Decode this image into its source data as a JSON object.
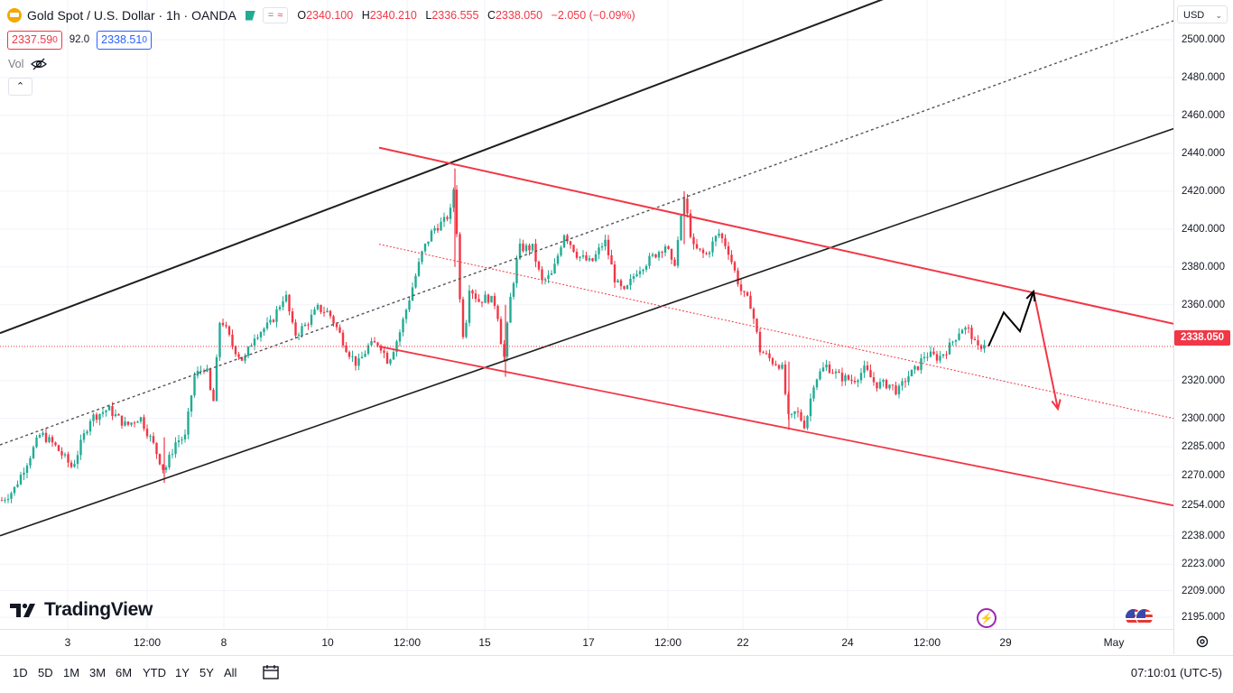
{
  "header": {
    "symbol_title": "Gold Spot / U.S. Dollar · 1h · OANDA",
    "open_label": "O",
    "open_value": "2340.100",
    "high_label": "H",
    "high_value": "2340.210",
    "low_label": "L",
    "low_value": "2336.555",
    "close_label": "C",
    "close_value": "2338.050",
    "change": "−2.050 (−0.09%)",
    "bid_main": "2337.59",
    "bid_sup": "0",
    "spread": "92.0",
    "ask_main": "2338.51",
    "ask_sup": "0",
    "vol_label": "Vol",
    "collapse_glyph": "⌃"
  },
  "currency": "USD",
  "last_price_label": "2338.050",
  "brand": "TradingView",
  "bottom_bar": {
    "ranges": [
      "1D",
      "5D",
      "1M",
      "3M",
      "6M",
      "YTD",
      "1Y",
      "5Y",
      "All"
    ],
    "clock": "07:10:01 (UTC-5)"
  },
  "colors": {
    "up": "#22ab94",
    "down": "#f23645",
    "channel_black": "#1e1e1e",
    "channel_red": "#f23645",
    "last_price": "#f23645",
    "event": "#9c27b0"
  },
  "icons": [
    "gold-coin-icon",
    "market-open-icon",
    "eye-hidden-icon",
    "chevron-up-icon",
    "calendar-range-icon",
    "gear-icon",
    "dividend-event-icon",
    "us-flag-icon"
  ],
  "chart_data": {
    "type": "candlestick",
    "title": "Gold Spot / U.S. Dollar · 1h · OANDA",
    "ylim": [
      2185,
      2515
    ],
    "y_ticks": [
      {
        "label": "2500.000",
        "v": 2500
      },
      {
        "label": "2480.000",
        "v": 2480
      },
      {
        "label": "2460.000",
        "v": 2460
      },
      {
        "label": "2440.000",
        "v": 2440
      },
      {
        "label": "2420.000",
        "v": 2420
      },
      {
        "label": "2400.000",
        "v": 2400
      },
      {
        "label": "2380.000",
        "v": 2380
      },
      {
        "label": "2360.000",
        "v": 2360
      },
      {
        "label": "2320.000",
        "v": 2320
      },
      {
        "label": "2300.000",
        "v": 2300
      },
      {
        "label": "2285.000",
        "v": 2285
      },
      {
        "label": "2270.000",
        "v": 2270
      },
      {
        "label": "2254.000",
        "v": 2254
      },
      {
        "label": "2238.000",
        "v": 2238
      },
      {
        "label": "2223.000",
        "v": 2223
      },
      {
        "label": "2209.000",
        "v": 2209
      },
      {
        "label": "2195.000",
        "v": 2195
      }
    ],
    "x_ticks": [
      "3",
      "12:00",
      "8",
      "10",
      "12:00",
      "15",
      "17",
      "12:00",
      "22",
      "24",
      "12:00",
      "29",
      "May"
    ],
    "last_price": 2338.05,
    "price_path": [
      [
        0,
        2256
      ],
      [
        15,
        2262
      ],
      [
        35,
        2282
      ],
      [
        45,
        2292
      ],
      [
        60,
        2286
      ],
      [
        80,
        2274
      ],
      [
        100,
        2300
      ],
      [
        120,
        2305
      ],
      [
        140,
        2296
      ],
      [
        155,
        2301
      ],
      [
        170,
        2286
      ],
      [
        182,
        2272
      ],
      [
        195,
        2288
      ],
      [
        205,
        2290
      ],
      [
        215,
        2322
      ],
      [
        228,
        2328
      ],
      [
        236,
        2306
      ],
      [
        244,
        2354
      ],
      [
        258,
        2338
      ],
      [
        270,
        2330
      ],
      [
        282,
        2344
      ],
      [
        300,
        2350
      ],
      [
        316,
        2366
      ],
      [
        326,
        2344
      ],
      [
        338,
        2349
      ],
      [
        352,
        2358
      ],
      [
        364,
        2356
      ],
      [
        375,
        2346
      ],
      [
        385,
        2336
      ],
      [
        396,
        2328
      ],
      [
        408,
        2338
      ],
      [
        420,
        2340
      ],
      [
        430,
        2330
      ],
      [
        442,
        2344
      ],
      [
        455,
        2366
      ],
      [
        468,
        2388
      ],
      [
        480,
        2400
      ],
      [
        492,
        2404
      ],
      [
        500,
        2410
      ],
      [
        504,
        2428
      ],
      [
        508,
        2370
      ],
      [
        514,
        2340
      ],
      [
        520,
        2370
      ],
      [
        530,
        2362
      ],
      [
        540,
        2364
      ],
      [
        550,
        2360
      ],
      [
        558,
        2330
      ],
      [
        565,
        2362
      ],
      [
        575,
        2390
      ],
      [
        590,
        2390
      ],
      [
        600,
        2372
      ],
      [
        612,
        2376
      ],
      [
        625,
        2398
      ],
      [
        640,
        2386
      ],
      [
        655,
        2382
      ],
      [
        670,
        2394
      ],
      [
        682,
        2372
      ],
      [
        692,
        2366
      ],
      [
        705,
        2378
      ],
      [
        720,
        2384
      ],
      [
        738,
        2392
      ],
      [
        746,
        2378
      ],
      [
        758,
        2416
      ],
      [
        768,
        2390
      ],
      [
        782,
        2386
      ],
      [
        796,
        2398
      ],
      [
        806,
        2390
      ],
      [
        815,
        2376
      ],
      [
        822,
        2366
      ],
      [
        832,
        2360
      ],
      [
        842,
        2336
      ],
      [
        856,
        2330
      ],
      [
        866,
        2328
      ],
      [
        874,
        2298
      ],
      [
        882,
        2304
      ],
      [
        892,
        2296
      ],
      [
        902,
        2320
      ],
      [
        915,
        2328
      ],
      [
        930,
        2322
      ],
      [
        945,
        2320
      ],
      [
        958,
        2326
      ],
      [
        970,
        2318
      ],
      [
        985,
        2318
      ],
      [
        995,
        2314
      ],
      [
        1005,
        2322
      ],
      [
        1015,
        2326
      ],
      [
        1025,
        2334
      ],
      [
        1040,
        2332
      ],
      [
        1052,
        2338
      ],
      [
        1065,
        2348
      ],
      [
        1075,
        2346
      ],
      [
        1082,
        2336
      ],
      [
        1090,
        2340
      ]
    ],
    "drawings": {
      "upper_channel_black": [
        [
          0,
          2345
        ],
        [
          1015,
          2528
        ]
      ],
      "middle_channel_dotted": [
        [
          0,
          2286
        ],
        [
          1300,
          2510
        ]
      ],
      "lower_channel_black": [
        [
          0,
          2238
        ],
        [
          1300,
          2453
        ]
      ],
      "upper_channel_red": [
        [
          420,
          2443
        ],
        [
          1300,
          2350
        ]
      ],
      "middle_channel_red_dotted": [
        [
          420,
          2392
        ],
        [
          1300,
          2300
        ]
      ],
      "lower_channel_red": [
        [
          420,
          2338
        ],
        [
          1300,
          2254
        ]
      ],
      "projection_up": [
        [
          1095,
          2338
        ],
        [
          1112,
          2356
        ],
        [
          1130,
          2346
        ],
        [
          1145,
          2367
        ]
      ],
      "projection_down": [
        [
          1145,
          2367
        ],
        [
          1172,
          2305
        ]
      ]
    }
  }
}
